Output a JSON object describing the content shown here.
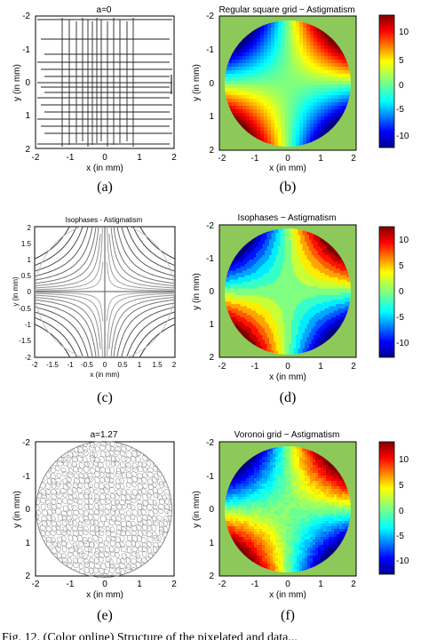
{
  "colors": {
    "background_green": "#8dc95a",
    "jet_top": "#800000",
    "jet_bottom": "#00008f"
  },
  "panels": [
    {
      "id": "a",
      "caption": "(a)",
      "title": "a=0",
      "xlabel": "x (in mm)",
      "ylabel": "y (in mm)",
      "xticks": [
        "-2",
        "-1",
        "0",
        "1",
        "2"
      ],
      "yticks": [
        "-2",
        "-1",
        "0",
        "1",
        "2"
      ],
      "content": "square grid lines"
    },
    {
      "id": "b",
      "caption": "(b)",
      "title": "Regular square grid − Astigmatism",
      "xlabel": "x (in mm)",
      "ylabel": "y (in mm)",
      "xticks": [
        "-2",
        "-1",
        "0",
        "1",
        "2"
      ],
      "yticks": [
        "-2",
        "-1",
        "0",
        "1",
        "2"
      ],
      "colorbar_ticks": [
        "10",
        "5",
        "0",
        "-5",
        "-10"
      ],
      "content": "astigmatism map, pixelated"
    },
    {
      "id": "c",
      "caption": "(c)",
      "title": "Isophases - Astigmatism",
      "xlabel": "x (in mm)",
      "ylabel": "y (in mm)",
      "xticks": [
        "-2",
        "-1.5",
        "-1",
        "-0.5",
        "0",
        "0.5",
        "1",
        "1.5",
        "2"
      ],
      "yticks": [
        "2",
        "1.5",
        "1",
        "0.5",
        "0",
        "-0.5",
        "-1",
        "-1.5",
        "-2"
      ],
      "content": "isophase contour curves"
    },
    {
      "id": "d",
      "caption": "(d)",
      "title": "Isophases − Astigmatism",
      "xlabel": "x (in mm)",
      "ylabel": "y (in mm)",
      "xticks": [
        "-2",
        "-1",
        "0",
        "1",
        "2"
      ],
      "yticks": [
        "-2",
        "-1",
        "0",
        "1",
        "2"
      ],
      "colorbar_ticks": [
        "10",
        "5",
        "0",
        "-5",
        "-10"
      ],
      "content": "astigmatism map, smooth bands"
    },
    {
      "id": "e",
      "caption": "(e)",
      "title": "a=1.27",
      "xlabel": "x (in mm)",
      "ylabel": "y (in mm)",
      "xticks": [
        "-2",
        "-1",
        "0",
        "1",
        "2"
      ],
      "yticks": [
        "-2",
        "-1",
        "0",
        "1",
        "2"
      ],
      "content": "voronoi cells in disk"
    },
    {
      "id": "f",
      "caption": "(f)",
      "title": "Voronoi grid − Astigmatism",
      "xlabel": "x (in mm)",
      "ylabel": "y (in mm)",
      "xticks": [
        "-2",
        "-1",
        "0",
        "1",
        "2"
      ],
      "yticks": [
        "-2",
        "-1",
        "0",
        "1",
        "2"
      ],
      "colorbar_ticks": [
        "10",
        "5",
        "0",
        "-5",
        "-10"
      ],
      "content": "astigmatism map, noisy"
    }
  ],
  "figure_caption": "Fig. 12. (Color online) Structure of the pixelated and data..."
}
